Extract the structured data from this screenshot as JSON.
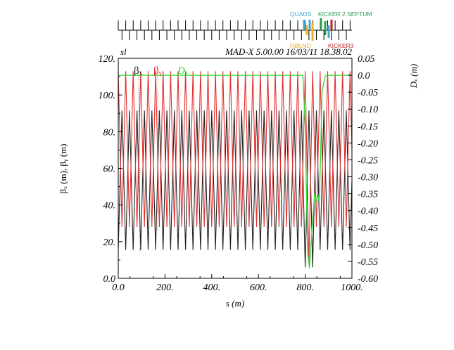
{
  "chart_data": {
    "type": "line",
    "header_left": "sl",
    "header_right": "MAD-X 5.00.00  16/03/11 18.38.02",
    "xlabel": "s (m)",
    "ylabel_left": "βₓ (m), βᵧ (m)",
    "ylabel_right": "Dₓ (m)",
    "xlim": [
      0,
      1000
    ],
    "ylim_left": [
      0,
      120
    ],
    "ylim_right": [
      -0.6,
      0.05
    ],
    "x_ticks": [
      0,
      200,
      400,
      600,
      800,
      1000
    ],
    "x_tick_labels": [
      "0.0",
      "200.",
      "400.",
      "600.",
      "800.",
      "1000."
    ],
    "y_left_ticks": [
      0,
      20,
      40,
      60,
      80,
      100,
      120
    ],
    "y_left_tick_labels": [
      "0.0",
      "20.",
      "40.",
      "60.",
      "80.",
      "100.",
      "120."
    ],
    "y_right_ticks": [
      0.05,
      0,
      -0.05,
      -0.1,
      -0.15,
      -0.2,
      -0.25,
      -0.3,
      -0.35,
      -0.4,
      -0.45,
      -0.5,
      -0.55,
      -0.6
    ],
    "y_right_tick_labels": [
      "0.05",
      "0.0",
      "-0.05",
      "-0.10",
      "-0.15",
      "-0.20",
      "-0.25",
      "-0.30",
      "-0.35",
      "-0.40",
      "-0.45",
      "-0.50",
      "-0.55",
      "-0.60"
    ],
    "legend": [
      "βₓ",
      "βᵧ",
      "Dₓ"
    ],
    "series": [
      {
        "name": "βₓ",
        "color": "#222222",
        "period_m": 32,
        "peak": 91.5,
        "valley": 15.5,
        "phase_m": 0
      },
      {
        "name": "βᵧ",
        "color": "#e03030",
        "period_m": 32,
        "peak": 113,
        "valley": 28,
        "phase_m": 16
      },
      {
        "name": "Dₓ",
        "color": "#30d830",
        "x": [
          0,
          770,
          790,
          800,
          810,
          818,
          825,
          832,
          840,
          848,
          855,
          860,
          865,
          872,
          880,
          885,
          890,
          900,
          1000
        ],
        "values": [
          0.0,
          0.0,
          0.0,
          -0.15,
          -0.52,
          -0.57,
          -0.5,
          -0.43,
          -0.35,
          -0.37,
          -0.355,
          -0.37,
          -0.26,
          -0.05,
          -0.02,
          -0.005,
          0.0,
          0.0,
          0.0
        ]
      }
    ],
    "annotations": [
      {
        "text": "QUADS",
        "color": "#3aa9d8"
      },
      {
        "text": "KICKER 2 SEPTUM",
        "color": "#2aa050"
      },
      {
        "text": "RBEND",
        "color": "#f0b020"
      },
      {
        "text": "KICKER3",
        "color": "#c02020"
      }
    ]
  }
}
